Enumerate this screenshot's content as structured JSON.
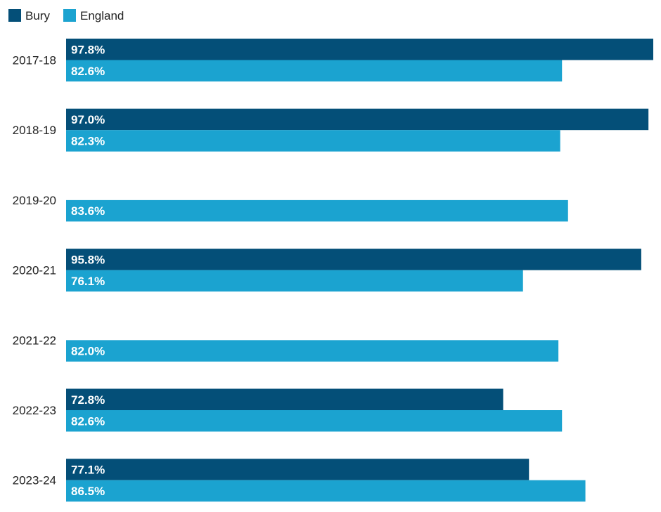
{
  "chart_data": {
    "type": "bar",
    "orientation": "horizontal",
    "categories": [
      "2017-18",
      "2018-19",
      "2019-20",
      "2020-21",
      "2021-22",
      "2022-23",
      "2023-24"
    ],
    "series": [
      {
        "name": "Bury",
        "color": "#044f78",
        "values": [
          97.8,
          97.0,
          null,
          95.8,
          null,
          72.8,
          77.1
        ],
        "labels": [
          "97.8%",
          "97.0%",
          "",
          "95.8%",
          "",
          "72.8%",
          "77.1%"
        ]
      },
      {
        "name": "England",
        "color": "#1ba3d0",
        "values": [
          82.6,
          82.3,
          83.6,
          76.1,
          82.0,
          82.6,
          86.5
        ],
        "labels": [
          "82.6%",
          "82.3%",
          "83.6%",
          "76.1%",
          "82.0%",
          "82.6%",
          "86.5%"
        ]
      }
    ],
    "xlim": [
      0,
      97.8
    ],
    "legend": "top-left",
    "grid": false,
    "unit": "%"
  }
}
